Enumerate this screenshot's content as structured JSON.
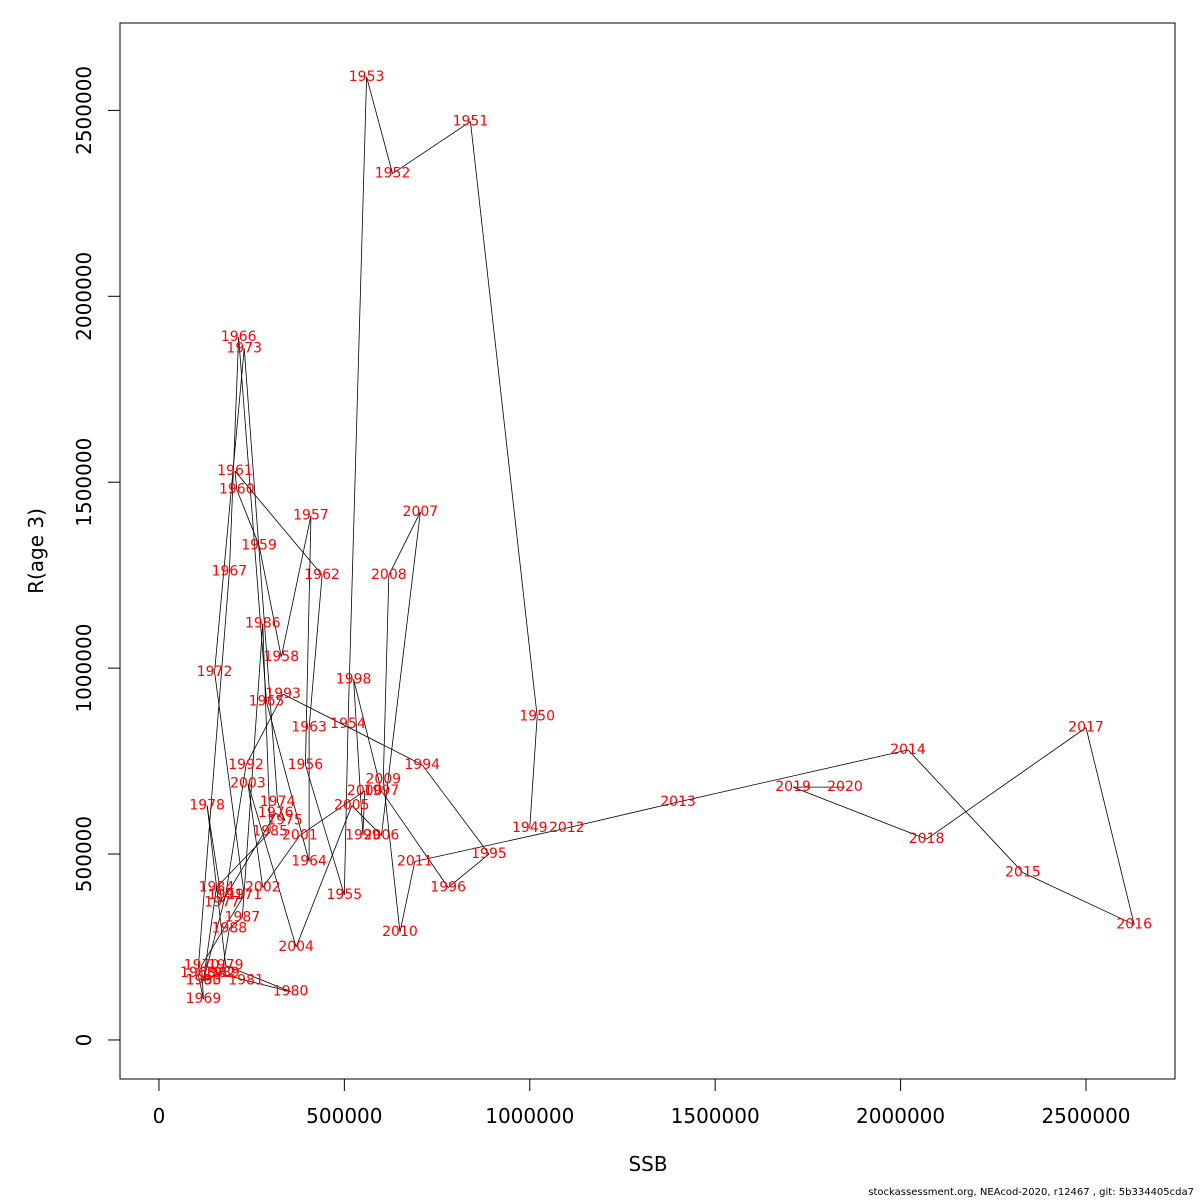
{
  "chart_data": {
    "type": "line",
    "title": "",
    "xlabel": "SSB",
    "ylabel": "R(age 3)",
    "xlim": [
      -105000,
      2740000
    ],
    "ylim": [
      -105000,
      2735000
    ],
    "x_ticks": [
      0,
      500000,
      1000000,
      1500000,
      2000000,
      2500000
    ],
    "x_tick_labels": [
      "0",
      "500000",
      "1000000",
      "1500000",
      "2000000",
      "2500000"
    ],
    "y_ticks": [
      0,
      500000,
      1000000,
      1500000,
      2000000,
      2500000
    ],
    "y_tick_labels": [
      "0",
      "500000",
      "1000000",
      "1500000",
      "2000000",
      "2500000"
    ],
    "grid": false,
    "line_color": "#000000",
    "label_color": "#ff0000",
    "series": [
      {
        "points": [
          {
            "year": "1949",
            "x": 1000000,
            "y": 570000
          },
          {
            "year": "1950",
            "x": 1020000,
            "y": 870000
          },
          {
            "year": "1951",
            "x": 840000,
            "y": 2470000
          },
          {
            "year": "1952",
            "x": 630000,
            "y": 2330000
          },
          {
            "year": "1953",
            "x": 560000,
            "y": 2590000
          },
          {
            "year": "1954",
            "x": 510000,
            "y": 850000
          },
          {
            "year": "1955",
            "x": 500000,
            "y": 390000
          },
          {
            "year": "1956",
            "x": 395000,
            "y": 740000
          },
          {
            "year": "1957",
            "x": 410000,
            "y": 1410000
          },
          {
            "year": "1958",
            "x": 330000,
            "y": 1030000
          },
          {
            "year": "1959",
            "x": 270000,
            "y": 1330000
          },
          {
            "year": "1960",
            "x": 210000,
            "y": 1480000
          },
          {
            "year": "1961",
            "x": 205000,
            "y": 1530000
          },
          {
            "year": "1962",
            "x": 440000,
            "y": 1250000
          },
          {
            "year": "1963",
            "x": 405000,
            "y": 840000
          },
          {
            "year": "1964",
            "x": 405000,
            "y": 480000
          },
          {
            "year": "1965",
            "x": 290000,
            "y": 910000
          },
          {
            "year": "1966",
            "x": 215000,
            "y": 1890000
          },
          {
            "year": "1967",
            "x": 190000,
            "y": 1260000
          },
          {
            "year": "1968",
            "x": 105000,
            "y": 180000
          },
          {
            "year": "1969",
            "x": 120000,
            "y": 110000
          },
          {
            "year": "1970",
            "x": 115000,
            "y": 200000
          },
          {
            "year": "1971",
            "x": 230000,
            "y": 390000
          },
          {
            "year": "1972",
            "x": 150000,
            "y": 990000
          },
          {
            "year": "1973",
            "x": 230000,
            "y": 1860000
          },
          {
            "year": "1974",
            "x": 320000,
            "y": 640000
          },
          {
            "year": "1975",
            "x": 340000,
            "y": 590000
          },
          {
            "year": "1976",
            "x": 315000,
            "y": 610000
          },
          {
            "year": "1977",
            "x": 170000,
            "y": 370000
          },
          {
            "year": "1978",
            "x": 130000,
            "y": 630000
          },
          {
            "year": "1979",
            "x": 180000,
            "y": 200000
          },
          {
            "year": "1980",
            "x": 355000,
            "y": 130000
          },
          {
            "year": "1981",
            "x": 235000,
            "y": 160000
          },
          {
            "year": "1982",
            "x": 160000,
            "y": 180000
          },
          {
            "year": "1983",
            "x": 120000,
            "y": 160000
          },
          {
            "year": "1984",
            "x": 155000,
            "y": 410000
          },
          {
            "year": "1985",
            "x": 300000,
            "y": 560000
          },
          {
            "year": "1986",
            "x": 280000,
            "y": 1120000
          },
          {
            "year": "1987",
            "x": 225000,
            "y": 330000
          },
          {
            "year": "1988",
            "x": 190000,
            "y": 300000
          },
          {
            "year": "1989",
            "x": 170000,
            "y": 180000
          },
          {
            "year": "1990",
            "x": 120000,
            "y": 160000
          },
          {
            "year": "1991",
            "x": 180000,
            "y": 390000
          },
          {
            "year": "1992",
            "x": 235000,
            "y": 740000
          },
          {
            "year": "1993",
            "x": 335000,
            "y": 930000
          },
          {
            "year": "1994",
            "x": 710000,
            "y": 740000
          },
          {
            "year": "1995",
            "x": 890000,
            "y": 500000
          },
          {
            "year": "1996",
            "x": 780000,
            "y": 410000
          },
          {
            "year": "1997",
            "x": 600000,
            "y": 670000
          },
          {
            "year": "1998",
            "x": 525000,
            "y": 970000
          },
          {
            "year": "1999",
            "x": 550000,
            "y": 550000
          },
          {
            "year": "2000",
            "x": 555000,
            "y": 670000
          },
          {
            "year": "2001",
            "x": 380000,
            "y": 550000
          },
          {
            "year": "2002",
            "x": 280000,
            "y": 410000
          },
          {
            "year": "2003",
            "x": 240000,
            "y": 690000
          },
          {
            "year": "2004",
            "x": 370000,
            "y": 250000
          },
          {
            "year": "2005",
            "x": 520000,
            "y": 630000
          },
          {
            "year": "2006",
            "x": 600000,
            "y": 550000
          },
          {
            "year": "2007",
            "x": 705000,
            "y": 1420000
          },
          {
            "year": "2008",
            "x": 620000,
            "y": 1250000
          },
          {
            "year": "2009",
            "x": 605000,
            "y": 700000
          },
          {
            "year": "2010",
            "x": 650000,
            "y": 290000
          },
          {
            "year": "2011",
            "x": 690000,
            "y": 480000
          },
          {
            "year": "2012",
            "x": 1100000,
            "y": 570000
          },
          {
            "year": "2013",
            "x": 1400000,
            "y": 640000
          },
          {
            "year": "2014",
            "x": 2020000,
            "y": 780000
          },
          {
            "year": "2015",
            "x": 2330000,
            "y": 450000
          },
          {
            "year": "2016",
            "x": 2630000,
            "y": 310000
          },
          {
            "year": "2017",
            "x": 2500000,
            "y": 840000
          },
          {
            "year": "2018",
            "x": 2070000,
            "y": 540000
          },
          {
            "year": "2019",
            "x": 1710000,
            "y": 680000
          },
          {
            "year": "2020",
            "x": 1850000,
            "y": 680000
          }
        ]
      }
    ]
  },
  "footer": {
    "note": "stockassessment.org, NEAcod-2020, r12467 , git: 5b334405cda7"
  }
}
